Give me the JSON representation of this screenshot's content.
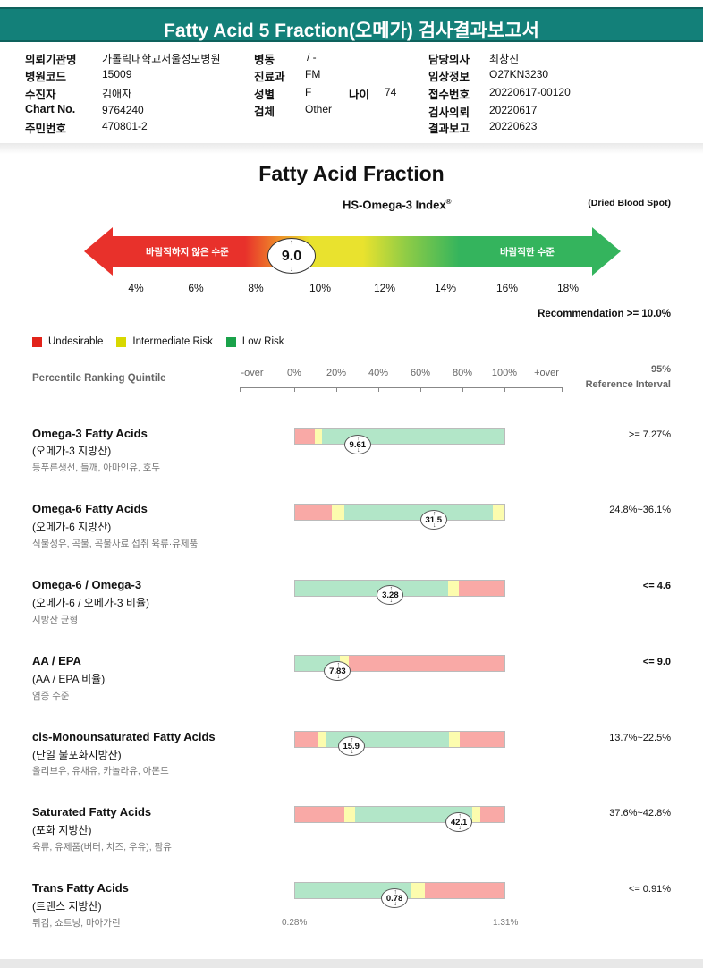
{
  "title": "Fatty Acid 5 Fraction(오메가) 검사결과보고서",
  "patient": [
    {
      "k": "의뢰기관명",
      "v": "가톨릭대학교서울성모병원"
    },
    {
      "k": "병원코드",
      "v": "15009"
    },
    {
      "k": "수진자",
      "v": "김애자"
    },
    {
      "k": "Chart No.",
      "v": "9764240"
    },
    {
      "k": "주민번호",
      "v": "470801-2"
    },
    {
      "k": "병동",
      "v": "/ -"
    },
    {
      "k": "진료과",
      "v": "FM"
    },
    {
      "k": "성별",
      "v": "F"
    },
    {
      "k": "나이",
      "v": "74"
    },
    {
      "k": "검체",
      "v": "Other"
    },
    {
      "k": "담당의사",
      "v": "최창진"
    },
    {
      "k": "임상정보",
      "v": "O27KN3230"
    },
    {
      "k": "접수번호",
      "v": "20220617-00120"
    },
    {
      "k": "검사의뢰",
      "v": "20220617"
    },
    {
      "k": "결과보고",
      "v": "20220623"
    }
  ],
  "main_title": "Fatty Acid Fraction",
  "index_title": "HS-Omega-3 Index",
  "index_sup": "®",
  "specimen_note": "(Dried Blood Spot)",
  "arrow_left_label": "바람직하지 않은 수준",
  "arrow_right_label": "바람직한 수준",
  "index_value": "9.0",
  "index_ticks": [
    "4%",
    "6%",
    "8%",
    "10%",
    "12%",
    "14%",
    "16%",
    "18%"
  ],
  "recommendation": "Recommendation  >= 10.0%",
  "legend": [
    {
      "label": "Undesirable",
      "color": "#e2231a"
    },
    {
      "label": "Intermediate Risk",
      "color": "#d8d800"
    },
    {
      "label": "Low Risk",
      "color": "#1aa24a"
    }
  ],
  "percentile_label": "Percentile Ranking Quintile",
  "percentile_ticks": [
    "-over",
    "0%",
    "20%",
    "40%",
    "60%",
    "80%",
    "100%",
    "+over"
  ],
  "ref_header_1": "95%",
  "ref_header_2": "Reference Interval",
  "colors": {
    "red": "#f9a9a6",
    "yellow": "#fcfcae",
    "green": "#b2e6c8",
    "header": "#138079"
  },
  "rows": [
    {
      "name": "Omega-3 Fatty Acids",
      "ko": "(오메가-3 지방산)",
      "desc": "등푸른생선, 들깨, 아마인유, 호두",
      "value": "9.61",
      "ref": ">= 7.27%",
      "ref_bold": false,
      "segments": [
        {
          "c": "red",
          "from": 0,
          "to": 0.095
        },
        {
          "c": "yellow",
          "from": 0.095,
          "to": 0.13
        },
        {
          "c": "green",
          "from": 0.13,
          "to": 1
        }
      ],
      "marker": 0.3
    },
    {
      "name": "Omega-6 Fatty Acids",
      "ko": "(오메가-6 지방산)",
      "desc": "식물성유, 곡물, 곡물사료 섭취 육류·유제품",
      "value": "31.5",
      "ref": "24.8%~36.1%",
      "ref_bold": false,
      "segments": [
        {
          "c": "red",
          "from": 0,
          "to": 0.175
        },
        {
          "c": "yellow",
          "from": 0.175,
          "to": 0.235
        },
        {
          "c": "green",
          "from": 0.235,
          "to": 0.945
        },
        {
          "c": "yellow",
          "from": 0.945,
          "to": 1
        }
      ],
      "marker": 0.66
    },
    {
      "name": "Omega-6 / Omega-3",
      "ko": "(오메가-6 / 오메가-3 비율)",
      "desc": "지방산 균형",
      "value": "3.28",
      "ref": "<= 4.6",
      "ref_bold": true,
      "segments": [
        {
          "c": "green",
          "from": 0,
          "to": 0.73
        },
        {
          "c": "yellow",
          "from": 0.73,
          "to": 0.78
        },
        {
          "c": "red",
          "from": 0.78,
          "to": 1
        }
      ],
      "marker": 0.455
    },
    {
      "name": "AA / EPA",
      "ko": "(AA / EPA 비율)",
      "desc": "염증 수준",
      "value": "7.83",
      "ref": "<= 9.0",
      "ref_bold": true,
      "segments": [
        {
          "c": "green",
          "from": 0,
          "to": 0.215
        },
        {
          "c": "yellow",
          "from": 0.215,
          "to": 0.255
        },
        {
          "c": "red",
          "from": 0.255,
          "to": 1
        }
      ],
      "marker": 0.205
    },
    {
      "name": "cis-Monounsaturated Fatty Acids",
      "ko": "(단일 불포화지방산)",
      "desc": "올리브유, 유채유, 카놀라유, 아몬드",
      "value": "15.9",
      "ref": "13.7%~22.5%",
      "ref_bold": false,
      "segments": [
        {
          "c": "red",
          "from": 0,
          "to": 0.105
        },
        {
          "c": "yellow",
          "from": 0.105,
          "to": 0.145
        },
        {
          "c": "green",
          "from": 0.145,
          "to": 0.735
        },
        {
          "c": "yellow",
          "from": 0.735,
          "to": 0.785
        },
        {
          "c": "red",
          "from": 0.785,
          "to": 1
        }
      ],
      "marker": 0.27
    },
    {
      "name": "Saturated Fatty Acids",
      "ko": "(포화 지방산)",
      "desc": "육류, 유제품(버터, 치즈, 우유), 팜유",
      "value": "42.1",
      "ref": "37.6%~42.8%",
      "ref_bold": false,
      "segments": [
        {
          "c": "red",
          "from": 0,
          "to": 0.235
        },
        {
          "c": "yellow",
          "from": 0.235,
          "to": 0.285
        },
        {
          "c": "green",
          "from": 0.285,
          "to": 0.845
        },
        {
          "c": "yellow",
          "from": 0.845,
          "to": 0.885
        },
        {
          "c": "red",
          "from": 0.885,
          "to": 1
        }
      ],
      "marker": 0.78
    },
    {
      "name": "Trans Fatty Acids",
      "ko": "(트랜스 지방산)",
      "desc": "튀김, 쇼트닝, 마아가린",
      "value": "0.78",
      "ref": "<= 0.91%",
      "ref_bold": false,
      "segments": [
        {
          "c": "green",
          "from": 0,
          "to": 0.555
        },
        {
          "c": "yellow",
          "from": 0.555,
          "to": 0.62
        },
        {
          "c": "red",
          "from": 0.62,
          "to": 1
        }
      ],
      "marker": 0.475
    }
  ],
  "foot_min": "0.28%",
  "foot_max": "1.31%"
}
